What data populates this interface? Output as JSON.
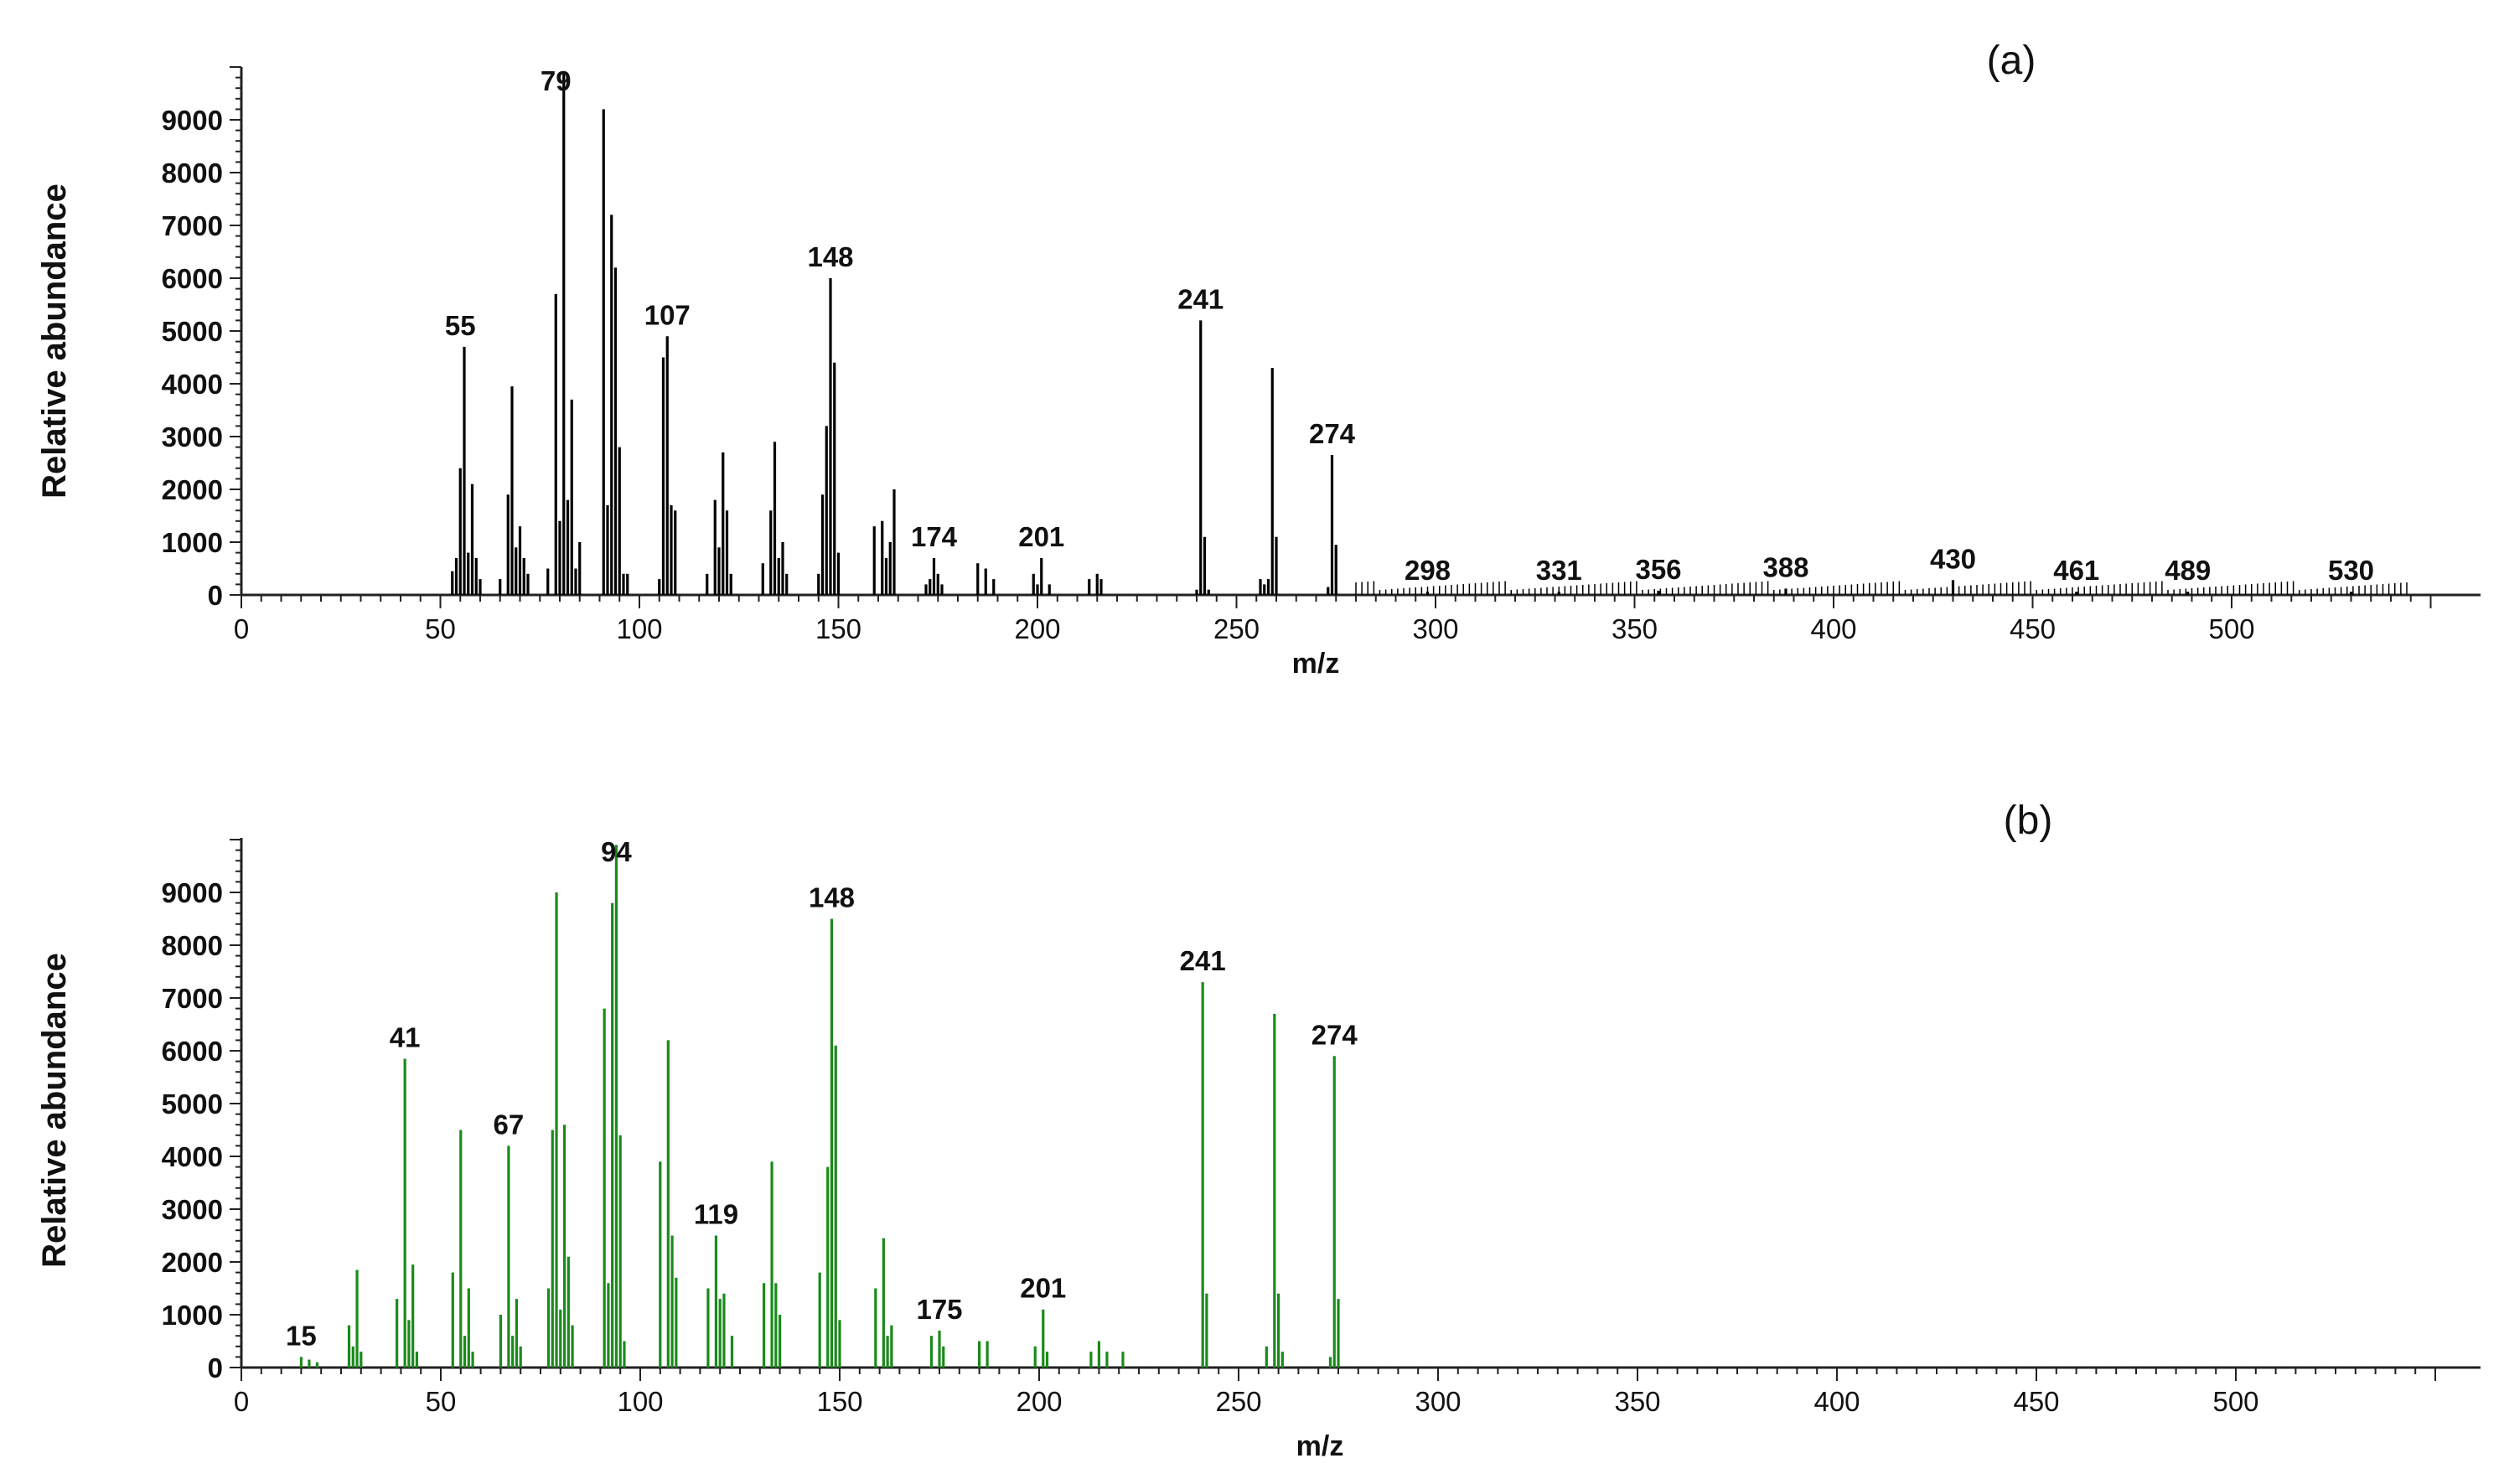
{
  "chart_data": [
    {
      "type": "bar",
      "panel_label": "(a)",
      "xlabel": "m/z",
      "ylabel": "Relative abundance",
      "xlim": [
        0,
        550
      ],
      "ylim": [
        0,
        10000
      ],
      "xticks": [
        0,
        50,
        100,
        150,
        200,
        250,
        300,
        350,
        400,
        450,
        500
      ],
      "yticks": [
        0,
        1000,
        2000,
        3000,
        4000,
        5000,
        6000,
        7000,
        8000,
        9000
      ],
      "color": "#000000",
      "peaks": [
        [
          53,
          450
        ],
        [
          54,
          700
        ],
        [
          55,
          2400
        ],
        [
          56,
          4700
        ],
        [
          57,
          800
        ],
        [
          58,
          2100
        ],
        [
          59,
          700
        ],
        [
          60,
          300
        ],
        [
          65,
          300
        ],
        [
          67,
          1900
        ],
        [
          68,
          3950
        ],
        [
          69,
          900
        ],
        [
          70,
          1300
        ],
        [
          71,
          700
        ],
        [
          72,
          400
        ],
        [
          77,
          500
        ],
        [
          79,
          5700
        ],
        [
          80,
          1400
        ],
        [
          81,
          9900
        ],
        [
          82,
          1800
        ],
        [
          83,
          3700
        ],
        [
          84,
          500
        ],
        [
          85,
          1000
        ],
        [
          91,
          9200
        ],
        [
          92,
          1700
        ],
        [
          93,
          7200
        ],
        [
          94,
          6200
        ],
        [
          95,
          2800
        ],
        [
          96,
          400
        ],
        [
          97,
          400
        ],
        [
          105,
          300
        ],
        [
          106,
          4500
        ],
        [
          107,
          4900
        ],
        [
          108,
          1700
        ],
        [
          109,
          1600
        ],
        [
          117,
          400
        ],
        [
          119,
          1800
        ],
        [
          120,
          900
        ],
        [
          121,
          2700
        ],
        [
          122,
          1600
        ],
        [
          123,
          400
        ],
        [
          131,
          600
        ],
        [
          133,
          1600
        ],
        [
          134,
          2900
        ],
        [
          135,
          700
        ],
        [
          136,
          1000
        ],
        [
          137,
          400
        ],
        [
          145,
          400
        ],
        [
          146,
          1900
        ],
        [
          147,
          3200
        ],
        [
          148,
          6000
        ],
        [
          149,
          4400
        ],
        [
          150,
          800
        ],
        [
          159,
          1300
        ],
        [
          161,
          1400
        ],
        [
          162,
          700
        ],
        [
          163,
          1000
        ],
        [
          164,
          2000
        ],
        [
          172,
          200
        ],
        [
          173,
          300
        ],
        [
          174,
          700
        ],
        [
          175,
          400
        ],
        [
          176,
          200
        ],
        [
          185,
          600
        ],
        [
          187,
          500
        ],
        [
          189,
          300
        ],
        [
          199,
          400
        ],
        [
          200,
          200
        ],
        [
          201,
          700
        ],
        [
          203,
          200
        ],
        [
          213,
          300
        ],
        [
          215,
          400
        ],
        [
          216,
          300
        ],
        [
          240,
          100
        ],
        [
          241,
          5200
        ],
        [
          242,
          1100
        ],
        [
          243,
          100
        ],
        [
          256,
          300
        ],
        [
          257,
          200
        ],
        [
          258,
          300
        ],
        [
          259,
          4300
        ],
        [
          260,
          1100
        ],
        [
          273,
          150
        ],
        [
          274,
          2650
        ],
        [
          275,
          950
        ],
        [
          298,
          60
        ],
        [
          331,
          60
        ],
        [
          356,
          80
        ],
        [
          388,
          120
        ],
        [
          430,
          280
        ],
        [
          461,
          60
        ],
        [
          489,
          60
        ],
        [
          530,
          60
        ]
      ],
      "peak_labels": [
        {
          "mz": 55,
          "text": "55"
        },
        {
          "mz": 79,
          "text": "79"
        },
        {
          "mz": 107,
          "text": "107"
        },
        {
          "mz": 148,
          "text": "148"
        },
        {
          "mz": 174,
          "text": "174"
        },
        {
          "mz": 201,
          "text": "201"
        },
        {
          "mz": 241,
          "text": "241"
        },
        {
          "mz": 274,
          "text": "274"
        },
        {
          "mz": 298,
          "text": "298"
        },
        {
          "mz": 331,
          "text": "331"
        },
        {
          "mz": 356,
          "text": "356"
        },
        {
          "mz": 388,
          "text": "388"
        },
        {
          "mz": 430,
          "text": "430"
        },
        {
          "mz": 461,
          "text": "461"
        },
        {
          "mz": 489,
          "text": "489"
        },
        {
          "mz": 530,
          "text": "530"
        }
      ]
    },
    {
      "type": "bar",
      "panel_label": "(b)",
      "xlabel": "m/z",
      "ylabel": "Relative abundance",
      "xlim": [
        0,
        550
      ],
      "ylim": [
        0,
        10000
      ],
      "xticks": [
        0,
        50,
        100,
        150,
        200,
        250,
        300,
        350,
        400,
        450,
        500
      ],
      "yticks": [
        0,
        1000,
        2000,
        3000,
        4000,
        5000,
        6000,
        7000,
        8000,
        9000
      ],
      "color": "#1a8a1a",
      "peaks": [
        [
          15,
          200
        ],
        [
          17,
          150
        ],
        [
          19,
          100
        ],
        [
          27,
          800
        ],
        [
          28,
          400
        ],
        [
          29,
          1850
        ],
        [
          30,
          300
        ],
        [
          39,
          1300
        ],
        [
          41,
          5850
        ],
        [
          42,
          900
        ],
        [
          43,
          1950
        ],
        [
          44,
          300
        ],
        [
          53,
          1800
        ],
        [
          55,
          4500
        ],
        [
          56,
          600
        ],
        [
          57,
          1500
        ],
        [
          58,
          300
        ],
        [
          65,
          1000
        ],
        [
          67,
          4200
        ],
        [
          68,
          600
        ],
        [
          69,
          1300
        ],
        [
          70,
          400
        ],
        [
          77,
          1500
        ],
        [
          78,
          4500
        ],
        [
          79,
          9000
        ],
        [
          80,
          1100
        ],
        [
          81,
          4600
        ],
        [
          82,
          2100
        ],
        [
          83,
          800
        ],
        [
          91,
          6800
        ],
        [
          92,
          1600
        ],
        [
          93,
          8800
        ],
        [
          94,
          9900
        ],
        [
          95,
          4400
        ],
        [
          96,
          500
        ],
        [
          105,
          3900
        ],
        [
          107,
          6200
        ],
        [
          108,
          2500
        ],
        [
          109,
          1700
        ],
        [
          117,
          1500
        ],
        [
          119,
          2500
        ],
        [
          120,
          1300
        ],
        [
          121,
          1400
        ],
        [
          123,
          600
        ],
        [
          131,
          1600
        ],
        [
          133,
          3900
        ],
        [
          134,
          1600
        ],
        [
          135,
          1000
        ],
        [
          145,
          1800
        ],
        [
          147,
          3800
        ],
        [
          148,
          8500
        ],
        [
          149,
          6100
        ],
        [
          150,
          900
        ],
        [
          159,
          1500
        ],
        [
          161,
          2450
        ],
        [
          162,
          600
        ],
        [
          163,
          800
        ],
        [
          173,
          600
        ],
        [
          175,
          700
        ],
        [
          176,
          400
        ],
        [
          185,
          500
        ],
        [
          187,
          500
        ],
        [
          199,
          400
        ],
        [
          201,
          1100
        ],
        [
          202,
          300
        ],
        [
          213,
          300
        ],
        [
          215,
          500
        ],
        [
          217,
          300
        ],
        [
          221,
          300
        ],
        [
          241,
          7300
        ],
        [
          242,
          1400
        ],
        [
          257,
          400
        ],
        [
          259,
          6700
        ],
        [
          260,
          1400
        ],
        [
          261,
          300
        ],
        [
          273,
          200
        ],
        [
          274,
          5900
        ],
        [
          275,
          1300
        ]
      ],
      "peak_labels": [
        {
          "mz": 15,
          "text": "15"
        },
        {
          "mz": 41,
          "text": "41"
        },
        {
          "mz": 67,
          "text": "67"
        },
        {
          "mz": 94,
          "text": "94"
        },
        {
          "mz": 119,
          "text": "119"
        },
        {
          "mz": 148,
          "text": "148"
        },
        {
          "mz": 175,
          "text": "175"
        },
        {
          "mz": 201,
          "text": "201"
        },
        {
          "mz": 241,
          "text": "241"
        },
        {
          "mz": 274,
          "text": "274"
        }
      ]
    }
  ]
}
